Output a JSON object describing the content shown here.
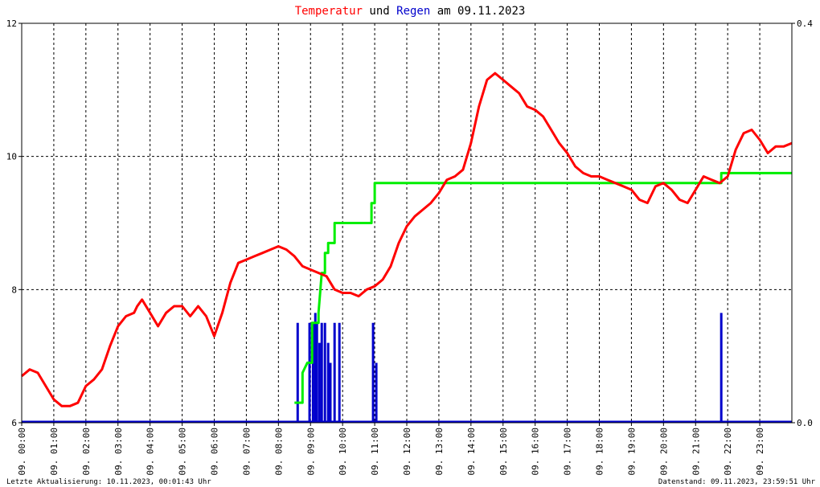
{
  "chart_data": {
    "type": "line",
    "title": {
      "word1": "Temperatur",
      "word2": " und ",
      "word3": "Regen",
      "word4": " am 09.11.2023",
      "color1": "#ff0000",
      "color2": "#000000",
      "color3": "#0000cc",
      "color4": "#000000"
    },
    "x_unit": "hours",
    "xlim": [
      0,
      24
    ],
    "x_tick_labels": [
      "09. 00:00",
      "09. 01:00",
      "09. 02:00",
      "09. 03:00",
      "09. 04:00",
      "09. 05:00",
      "09. 06:00",
      "09. 07:00",
      "09. 08:00",
      "09. 09:00",
      "09. 10:00",
      "09. 11:00",
      "09. 12:00",
      "09. 13:00",
      "09. 14:00",
      "09. 15:00",
      "09. 16:00",
      "09. 17:00",
      "09. 18:00",
      "09. 19:00",
      "09. 20:00",
      "09. 21:00",
      "09. 22:00",
      "09. 23:00"
    ],
    "left_axis": {
      "ylim": [
        6,
        12
      ],
      "ticks": [
        "6",
        "8",
        "10",
        "12"
      ]
    },
    "right_axis": {
      "ylim": [
        0,
        0.4
      ],
      "ticks": [
        "0.0",
        "0.4"
      ]
    },
    "grid": true,
    "series": [
      {
        "axis": "left",
        "color": "#ff0000",
        "x": [
          0,
          0.25,
          0.5,
          0.75,
          1,
          1.25,
          1.5,
          1.75,
          2,
          2.25,
          2.5,
          2.75,
          3,
          3.25,
          3.5,
          3.6,
          3.75,
          4,
          4.25,
          4.5,
          4.75,
          5,
          5.25,
          5.5,
          5.75,
          6,
          6.25,
          6.5,
          6.75,
          7,
          7.25,
          7.5,
          7.75,
          8,
          8.25,
          8.5,
          8.75,
          9,
          9.25,
          9.5,
          9.75,
          10,
          10.25,
          10.5,
          10.75,
          11,
          11.25,
          11.5,
          11.75,
          12,
          12.25,
          12.5,
          12.75,
          13,
          13.25,
          13.5,
          13.75,
          14,
          14.25,
          14.5,
          14.75,
          15,
          15.25,
          15.5,
          15.75,
          16,
          16.25,
          16.5,
          16.75,
          17,
          17.25,
          17.5,
          17.75,
          18,
          18.25,
          18.5,
          18.75,
          19,
          19.25,
          19.5,
          19.75,
          20,
          20.25,
          20.5,
          20.75,
          21,
          21.25,
          21.5,
          21.75,
          22,
          22.25,
          22.5,
          22.75,
          23,
          23.25,
          23.5,
          23.75,
          24
        ],
        "y": [
          6.7,
          6.8,
          6.75,
          6.55,
          6.35,
          6.25,
          6.25,
          6.3,
          6.55,
          6.65,
          6.8,
          7.15,
          7.45,
          7.6,
          7.65,
          7.75,
          7.85,
          7.65,
          7.45,
          7.65,
          7.75,
          7.75,
          7.6,
          7.75,
          7.6,
          7.3,
          7.65,
          8.1,
          8.4,
          8.45,
          8.5,
          8.55,
          8.6,
          8.65,
          8.6,
          8.5,
          8.35,
          8.3,
          8.25,
          8.2,
          8.0,
          7.95,
          7.95,
          7.9,
          8.0,
          8.05,
          8.15,
          8.35,
          8.7,
          8.95,
          9.1,
          9.2,
          9.3,
          9.45,
          9.65,
          9.7,
          9.8,
          10.2,
          10.75,
          11.15,
          11.25,
          11.15,
          11.05,
          10.95,
          10.75,
          10.7,
          10.6,
          10.4,
          10.2,
          10.05,
          9.85,
          9.75,
          9.7,
          9.7,
          9.65,
          9.6,
          9.55,
          9.5,
          9.35,
          9.3,
          9.55,
          9.6,
          9.5,
          9.35,
          9.3,
          9.5,
          9.7,
          9.65,
          9.6,
          9.7,
          10.1,
          10.35,
          10.4,
          10.25,
          10.05,
          10.15,
          10.15,
          10.2
        ]
      },
      {
        "axis": "right",
        "color": "#00ee00",
        "x": [
          8.5,
          8.75,
          8.75,
          8.9,
          9.05,
          9.05,
          9.25,
          9.25,
          9.3,
          9.35,
          9.45,
          9.45,
          9.55,
          9.55,
          9.75,
          9.75,
          9.9,
          9.9,
          10.9,
          10.9,
          11.0,
          11.0,
          21.8,
          21.8,
          24
        ],
        "y": [
          0.02,
          0.02,
          0.05,
          0.06,
          0.06,
          0.1,
          0.1,
          0.11,
          0.13,
          0.15,
          0.15,
          0.17,
          0.17,
          0.18,
          0.18,
          0.2,
          0.2,
          0.2,
          0.2,
          0.22,
          0.22,
          0.24,
          0.24,
          0.25,
          0.25
        ]
      },
      {
        "axis": "right",
        "color": "#0000cc",
        "bars_x": [
          8.6,
          8.97,
          9.08,
          9.15,
          9.2,
          9.28,
          9.35,
          9.45,
          9.55,
          9.62,
          9.75,
          9.9,
          10.95,
          11.05,
          21.8
        ],
        "bars_y": [
          0.1,
          0.1,
          0.1,
          0.11,
          0.1,
          0.08,
          0.1,
          0.1,
          0.08,
          0.06,
          0.1,
          0.1,
          0.1,
          0.06,
          0.11
        ]
      }
    ]
  },
  "footer": {
    "left": "Letzte Aktualisierung: 10.11.2023, 00:01:43 Uhr",
    "right": "Datenstand: 09.11.2023, 23:59:51 Uhr"
  }
}
